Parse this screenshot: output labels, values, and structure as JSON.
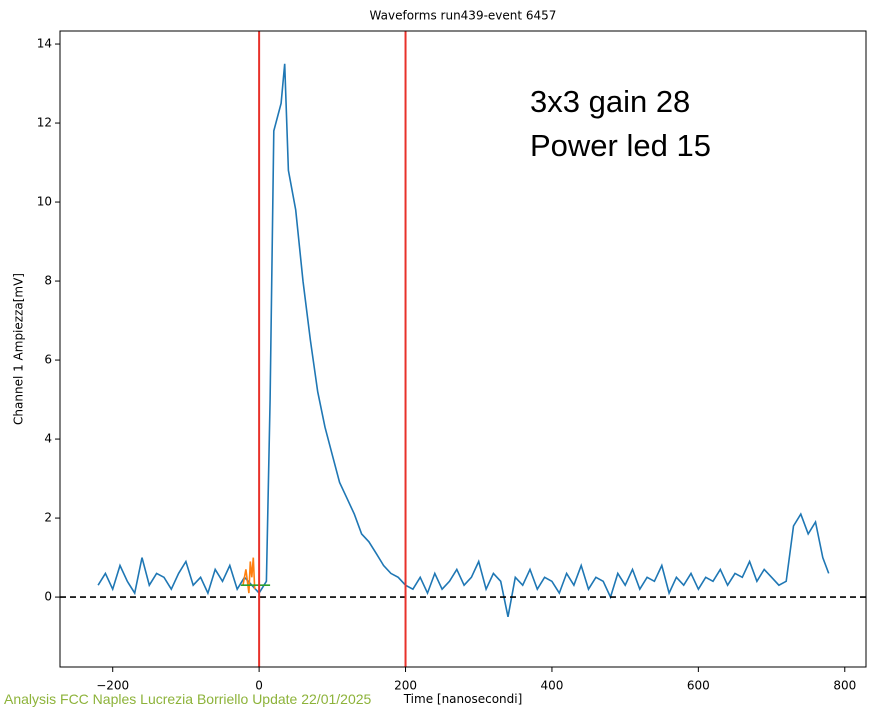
{
  "chart_data": {
    "type": "line",
    "title": "Waveforms run439-event 6457",
    "xlabel": "Time [nanosecondi]",
    "ylabel": "Channel 1 Ampiezza[mV]",
    "annotations": [
      "3x3 gain 28",
      "Power led 15"
    ],
    "xlim": [
      -272,
      829
    ],
    "ylim": [
      -1.77,
      14.33
    ],
    "xticks": [
      {
        "value": -200,
        "label": "−200"
      },
      0,
      200,
      400,
      600,
      800
    ],
    "yticks": [
      0,
      2,
      4,
      6,
      8,
      10,
      12,
      14
    ],
    "vlines": {
      "x": [
        0,
        200
      ],
      "color": "#e8312a"
    },
    "hline": {
      "y": 0,
      "color": "#000000"
    },
    "series": [
      {
        "color": "#1f77b4",
        "x": [
          -220,
          -210,
          -200,
          -190,
          -180,
          -170,
          -160,
          -150,
          -140,
          -130,
          -120,
          -110,
          -100,
          -90,
          -80,
          -70,
          -60,
          -50,
          -40,
          -30,
          -20,
          -10,
          0,
          10,
          15,
          20,
          30,
          35,
          40,
          50,
          60,
          70,
          80,
          90,
          100,
          110,
          120,
          130,
          140,
          150,
          160,
          170,
          180,
          190,
          200,
          210,
          220,
          230,
          240,
          250,
          260,
          270,
          280,
          290,
          300,
          310,
          320,
          330,
          340,
          350,
          360,
          370,
          380,
          390,
          400,
          410,
          420,
          430,
          440,
          450,
          460,
          470,
          480,
          490,
          500,
          510,
          520,
          530,
          540,
          550,
          560,
          570,
          580,
          590,
          600,
          610,
          620,
          630,
          640,
          650,
          660,
          670,
          680,
          690,
          700,
          710,
          720,
          730,
          740,
          750,
          760,
          770,
          778
        ],
        "values": [
          0.3,
          0.6,
          0.2,
          0.8,
          0.4,
          0.1,
          1.0,
          0.3,
          0.6,
          0.5,
          0.2,
          0.6,
          0.9,
          0.3,
          0.5,
          0.1,
          0.7,
          0.4,
          0.8,
          0.2,
          0.5,
          0.3,
          0.1,
          0.4,
          5.0,
          11.8,
          12.5,
          13.5,
          10.8,
          9.8,
          8.0,
          6.5,
          5.2,
          4.3,
          3.6,
          2.9,
          2.5,
          2.1,
          1.6,
          1.4,
          1.1,
          0.8,
          0.6,
          0.5,
          0.3,
          0.2,
          0.5,
          0.1,
          0.6,
          0.2,
          0.4,
          0.7,
          0.3,
          0.5,
          0.9,
          0.2,
          0.6,
          0.4,
          -0.5,
          0.5,
          0.3,
          0.7,
          0.2,
          0.5,
          0.4,
          0.1,
          0.6,
          0.3,
          0.8,
          0.2,
          0.5,
          0.4,
          0.0,
          0.6,
          0.3,
          0.7,
          0.2,
          0.5,
          0.4,
          0.8,
          0.1,
          0.5,
          0.3,
          0.6,
          0.2,
          0.5,
          0.4,
          0.7,
          0.3,
          0.6,
          0.5,
          0.9,
          0.4,
          0.7,
          0.5,
          0.3,
          0.4,
          1.8,
          2.1,
          1.6,
          1.9,
          1.0,
          0.6
        ]
      },
      {
        "color": "#ff7f0e",
        "x": [
          -22,
          -18,
          -14,
          -12,
          -10,
          -8,
          -6
        ],
        "values": [
          0.3,
          0.7,
          0.1,
          0.9,
          0.5,
          1.0,
          0.2
        ]
      },
      {
        "color": "#2ca02c",
        "x": [
          -25,
          15
        ],
        "values": [
          0.3,
          0.3
        ]
      }
    ]
  },
  "footer": "Analysis FCC Naples Lucrezia Borriello Update 22/01/2025"
}
